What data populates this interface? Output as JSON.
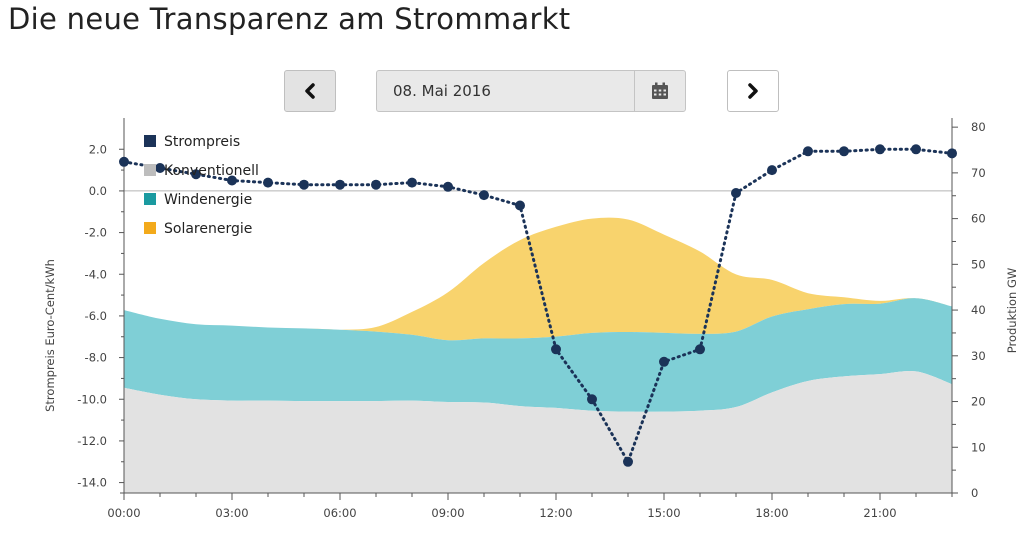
{
  "page": {
    "title": "Die neue Transparenz am Strommarkt"
  },
  "date_picker": {
    "value": "08. Mai 2016",
    "prev_icon": "chevron-left-icon",
    "next_icon": "chevron-right-icon",
    "calendar_icon": "calendar-icon"
  },
  "chart_data": {
    "type": "area",
    "x": [
      "00:00",
      "01:00",
      "02:00",
      "03:00",
      "04:00",
      "05:00",
      "06:00",
      "07:00",
      "08:00",
      "09:00",
      "10:00",
      "11:00",
      "12:00",
      "13:00",
      "14:00",
      "15:00",
      "16:00",
      "17:00",
      "18:00",
      "19:00",
      "20:00",
      "21:00",
      "22:00",
      "23:00"
    ],
    "x_ticks": [
      "00:00",
      "03:00",
      "06:00",
      "09:00",
      "12:00",
      "15:00",
      "18:00",
      "21:00"
    ],
    "xlim": [
      "00:00",
      "23:00"
    ],
    "ylabel_left": "Strompreis Euro-Cent/kWh",
    "ylabel_right": "Produktion GW",
    "ylim_left": [
      -14.5,
      3.5
    ],
    "ylim_right": [
      0,
      82
    ],
    "yticks_left": [
      "2.0",
      "0.0",
      "-2.0",
      "-4.0",
      "-6.0",
      "-8.0",
      "-10.0",
      "-12.0",
      "-14.0"
    ],
    "yticks_right": [
      "80",
      "70",
      "60",
      "50",
      "40",
      "30",
      "20",
      "10",
      "0"
    ],
    "legend": {
      "position": "top-left",
      "entries": [
        {
          "label": "Strompreis",
          "color": "#1b3358"
        },
        {
          "label": "Konventionell",
          "color": "#bdbdbd"
        },
        {
          "label": "Windenergie",
          "color": "#1a9aa0"
        },
        {
          "label": "Solarenergie",
          "color": "#f3aa1b"
        }
      ]
    },
    "series": [
      {
        "name": "Konventionell",
        "axis": "right",
        "kind": "stacked-area",
        "color": "#e2e2e2",
        "values": [
          23.0,
          21.5,
          20.5,
          20.2,
          20.2,
          20.1,
          20.1,
          20.1,
          20.2,
          19.9,
          19.8,
          19.0,
          18.6,
          18.0,
          17.8,
          17.8,
          18.0,
          18.8,
          22.0,
          24.5,
          25.5,
          26.0,
          26.6,
          23.8
        ]
      },
      {
        "name": "Windenergie",
        "axis": "right",
        "kind": "stacked-area",
        "color": "#7fcfd6",
        "values": [
          17.0,
          16.6,
          16.4,
          16.4,
          16.0,
          15.9,
          15.6,
          15.2,
          14.4,
          13.5,
          14.0,
          14.8,
          15.6,
          17.0,
          17.4,
          17.2,
          16.8,
          16.5,
          16.6,
          15.7,
          15.8,
          15.4,
          16.0,
          17.0
        ]
      },
      {
        "name": "Solarenergie",
        "axis": "right",
        "kind": "stacked-area",
        "color": "#f8d36d",
        "values": [
          0,
          0,
          0,
          0,
          0,
          0,
          0,
          1.0,
          5.0,
          10.5,
          16.5,
          21.5,
          24.0,
          25.0,
          24.6,
          21.5,
          18.0,
          12.5,
          8.0,
          3.5,
          1.5,
          0.6,
          0,
          0
        ]
      },
      {
        "name": "Strompreis",
        "axis": "left",
        "kind": "dotted-line-markers",
        "color": "#1b3358",
        "values": [
          1.4,
          1.1,
          0.8,
          0.5,
          0.4,
          0.3,
          0.3,
          0.3,
          0.4,
          0.2,
          -0.2,
          -0.7,
          -7.6,
          -10.0,
          -13.0,
          -8.2,
          -7.6,
          -0.1,
          1.0,
          1.9,
          1.9,
          2.0,
          2.0,
          1.8
        ]
      }
    ]
  }
}
